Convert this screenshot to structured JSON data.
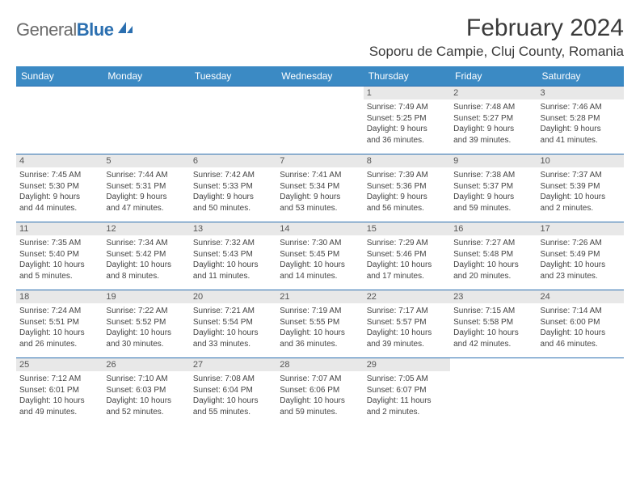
{
  "logo": {
    "textGray": "General",
    "textBlue": "Blue"
  },
  "header": {
    "month_title": "February 2024",
    "location": "Soporu de Campie, Cluj County, Romania"
  },
  "colors": {
    "header_bg": "#3b8ac4",
    "border": "#2b6fb0",
    "daynum_bg": "#e8e8e8",
    "logo_gray": "#6b6b6b",
    "logo_blue": "#2b6fb0"
  },
  "weekdays": [
    "Sunday",
    "Monday",
    "Tuesday",
    "Wednesday",
    "Thursday",
    "Friday",
    "Saturday"
  ],
  "weeks": [
    [
      {
        "empty": true
      },
      {
        "empty": true
      },
      {
        "empty": true
      },
      {
        "empty": true
      },
      {
        "day": "1",
        "sunrise": "Sunrise: 7:49 AM",
        "sunset": "Sunset: 5:25 PM",
        "daylight1": "Daylight: 9 hours",
        "daylight2": "and 36 minutes."
      },
      {
        "day": "2",
        "sunrise": "Sunrise: 7:48 AM",
        "sunset": "Sunset: 5:27 PM",
        "daylight1": "Daylight: 9 hours",
        "daylight2": "and 39 minutes."
      },
      {
        "day": "3",
        "sunrise": "Sunrise: 7:46 AM",
        "sunset": "Sunset: 5:28 PM",
        "daylight1": "Daylight: 9 hours",
        "daylight2": "and 41 minutes."
      }
    ],
    [
      {
        "day": "4",
        "sunrise": "Sunrise: 7:45 AM",
        "sunset": "Sunset: 5:30 PM",
        "daylight1": "Daylight: 9 hours",
        "daylight2": "and 44 minutes."
      },
      {
        "day": "5",
        "sunrise": "Sunrise: 7:44 AM",
        "sunset": "Sunset: 5:31 PM",
        "daylight1": "Daylight: 9 hours",
        "daylight2": "and 47 minutes."
      },
      {
        "day": "6",
        "sunrise": "Sunrise: 7:42 AM",
        "sunset": "Sunset: 5:33 PM",
        "daylight1": "Daylight: 9 hours",
        "daylight2": "and 50 minutes."
      },
      {
        "day": "7",
        "sunrise": "Sunrise: 7:41 AM",
        "sunset": "Sunset: 5:34 PM",
        "daylight1": "Daylight: 9 hours",
        "daylight2": "and 53 minutes."
      },
      {
        "day": "8",
        "sunrise": "Sunrise: 7:39 AM",
        "sunset": "Sunset: 5:36 PM",
        "daylight1": "Daylight: 9 hours",
        "daylight2": "and 56 minutes."
      },
      {
        "day": "9",
        "sunrise": "Sunrise: 7:38 AM",
        "sunset": "Sunset: 5:37 PM",
        "daylight1": "Daylight: 9 hours",
        "daylight2": "and 59 minutes."
      },
      {
        "day": "10",
        "sunrise": "Sunrise: 7:37 AM",
        "sunset": "Sunset: 5:39 PM",
        "daylight1": "Daylight: 10 hours",
        "daylight2": "and 2 minutes."
      }
    ],
    [
      {
        "day": "11",
        "sunrise": "Sunrise: 7:35 AM",
        "sunset": "Sunset: 5:40 PM",
        "daylight1": "Daylight: 10 hours",
        "daylight2": "and 5 minutes."
      },
      {
        "day": "12",
        "sunrise": "Sunrise: 7:34 AM",
        "sunset": "Sunset: 5:42 PM",
        "daylight1": "Daylight: 10 hours",
        "daylight2": "and 8 minutes."
      },
      {
        "day": "13",
        "sunrise": "Sunrise: 7:32 AM",
        "sunset": "Sunset: 5:43 PM",
        "daylight1": "Daylight: 10 hours",
        "daylight2": "and 11 minutes."
      },
      {
        "day": "14",
        "sunrise": "Sunrise: 7:30 AM",
        "sunset": "Sunset: 5:45 PM",
        "daylight1": "Daylight: 10 hours",
        "daylight2": "and 14 minutes."
      },
      {
        "day": "15",
        "sunrise": "Sunrise: 7:29 AM",
        "sunset": "Sunset: 5:46 PM",
        "daylight1": "Daylight: 10 hours",
        "daylight2": "and 17 minutes."
      },
      {
        "day": "16",
        "sunrise": "Sunrise: 7:27 AM",
        "sunset": "Sunset: 5:48 PM",
        "daylight1": "Daylight: 10 hours",
        "daylight2": "and 20 minutes."
      },
      {
        "day": "17",
        "sunrise": "Sunrise: 7:26 AM",
        "sunset": "Sunset: 5:49 PM",
        "daylight1": "Daylight: 10 hours",
        "daylight2": "and 23 minutes."
      }
    ],
    [
      {
        "day": "18",
        "sunrise": "Sunrise: 7:24 AM",
        "sunset": "Sunset: 5:51 PM",
        "daylight1": "Daylight: 10 hours",
        "daylight2": "and 26 minutes."
      },
      {
        "day": "19",
        "sunrise": "Sunrise: 7:22 AM",
        "sunset": "Sunset: 5:52 PM",
        "daylight1": "Daylight: 10 hours",
        "daylight2": "and 30 minutes."
      },
      {
        "day": "20",
        "sunrise": "Sunrise: 7:21 AM",
        "sunset": "Sunset: 5:54 PM",
        "daylight1": "Daylight: 10 hours",
        "daylight2": "and 33 minutes."
      },
      {
        "day": "21",
        "sunrise": "Sunrise: 7:19 AM",
        "sunset": "Sunset: 5:55 PM",
        "daylight1": "Daylight: 10 hours",
        "daylight2": "and 36 minutes."
      },
      {
        "day": "22",
        "sunrise": "Sunrise: 7:17 AM",
        "sunset": "Sunset: 5:57 PM",
        "daylight1": "Daylight: 10 hours",
        "daylight2": "and 39 minutes."
      },
      {
        "day": "23",
        "sunrise": "Sunrise: 7:15 AM",
        "sunset": "Sunset: 5:58 PM",
        "daylight1": "Daylight: 10 hours",
        "daylight2": "and 42 minutes."
      },
      {
        "day": "24",
        "sunrise": "Sunrise: 7:14 AM",
        "sunset": "Sunset: 6:00 PM",
        "daylight1": "Daylight: 10 hours",
        "daylight2": "and 46 minutes."
      }
    ],
    [
      {
        "day": "25",
        "sunrise": "Sunrise: 7:12 AM",
        "sunset": "Sunset: 6:01 PM",
        "daylight1": "Daylight: 10 hours",
        "daylight2": "and 49 minutes."
      },
      {
        "day": "26",
        "sunrise": "Sunrise: 7:10 AM",
        "sunset": "Sunset: 6:03 PM",
        "daylight1": "Daylight: 10 hours",
        "daylight2": "and 52 minutes."
      },
      {
        "day": "27",
        "sunrise": "Sunrise: 7:08 AM",
        "sunset": "Sunset: 6:04 PM",
        "daylight1": "Daylight: 10 hours",
        "daylight2": "and 55 minutes."
      },
      {
        "day": "28",
        "sunrise": "Sunrise: 7:07 AM",
        "sunset": "Sunset: 6:06 PM",
        "daylight1": "Daylight: 10 hours",
        "daylight2": "and 59 minutes."
      },
      {
        "day": "29",
        "sunrise": "Sunrise: 7:05 AM",
        "sunset": "Sunset: 6:07 PM",
        "daylight1": "Daylight: 11 hours",
        "daylight2": "and 2 minutes."
      },
      {
        "empty": true
      },
      {
        "empty": true
      }
    ]
  ]
}
